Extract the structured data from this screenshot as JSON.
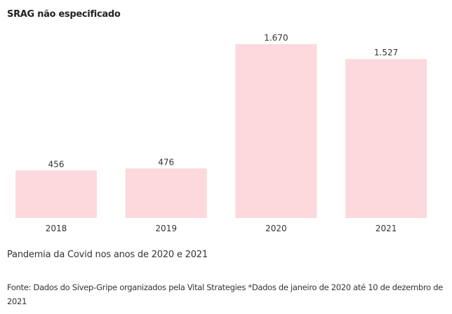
{
  "chart_data": {
    "type": "bar",
    "title": "SRAG não especificado",
    "categories": [
      "2018",
      "2019",
      "2020",
      "2021"
    ],
    "values": [
      456,
      476,
      1670,
      1527
    ],
    "value_labels": [
      "456",
      "476",
      "1.670",
      "1.527"
    ],
    "xlabel": "",
    "ylabel": "",
    "ylim": [
      0,
      1670
    ],
    "grid": false,
    "bar_color": "#fbd9dc"
  },
  "caption": "Pandemia da Covid nos anos de 2020 e 2021",
  "source": "Fonte: Dados do Sivep-Gripe organizados pela Vital Strategies *Dados de janeiro de 2020 até 10 de dezembro de 2021"
}
